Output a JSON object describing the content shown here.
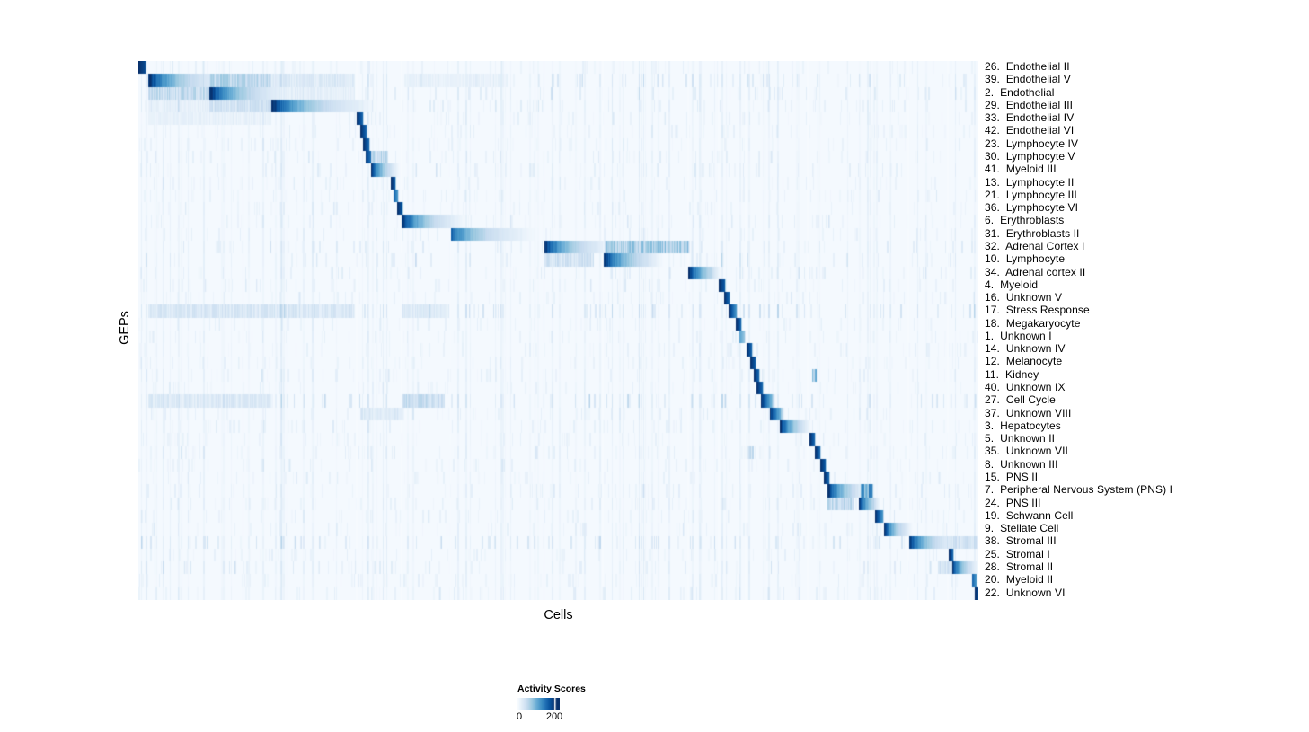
{
  "figure": {
    "background": "#ffffff",
    "plot_background": "#f5f9fe"
  },
  "chart_data": {
    "type": "heatmap",
    "title": "",
    "xlabel": "Cells",
    "ylabel": "GEPs",
    "grid": false,
    "colormap": "Blues",
    "color_min": "#f7fbff",
    "color_max": "#08306b",
    "value_range": [
      0,
      200
    ],
    "colorbar": {
      "title": "Activity Scores",
      "tick_labels": [
        "0",
        "200"
      ],
      "tick_values": [
        0,
        200
      ],
      "position": "bottom"
    },
    "n_rows": 42,
    "block_scale": 935,
    "rows": [
      {
        "label": "26.  Endothelial II",
        "block": [
          0,
          7
        ],
        "peak": 1.0,
        "end": 0.9,
        "noise": 0.8
      },
      {
        "label": "39.  Endothelial V",
        "block": [
          11,
          78
        ],
        "peak": 1.0,
        "end": 0.14,
        "noise": 1.6,
        "extras": [
          [
            79,
            147,
            0.3
          ],
          [
            148,
            240,
            0.14
          ],
          [
            296,
            410,
            0.08
          ]
        ]
      },
      {
        "label": "2.  Endothelial",
        "block": [
          79,
          147
        ],
        "peak": 1.0,
        "end": 0.14,
        "noise": 1.3,
        "extras": [
          [
            11,
            78,
            0.26
          ],
          [
            148,
            240,
            0.1
          ]
        ]
      },
      {
        "label": "29.  Endothelial III",
        "block": [
          148,
          242
        ],
        "peak": 1.0,
        "end": 0.11,
        "noise": 1.2,
        "extras": [
          [
            11,
            78,
            0.09
          ],
          [
            79,
            147,
            0.2
          ]
        ]
      },
      {
        "label": "33.  Endothelial IV",
        "block": [
          243,
          249
        ],
        "peak": 1.0,
        "end": 0.8,
        "noise": 0.9,
        "extras": [
          [
            11,
            147,
            0.08
          ]
        ]
      },
      {
        "label": "42.  Endothelial VI",
        "block": [
          247,
          253
        ],
        "peak": 1.0,
        "end": 0.8,
        "noise": 0.8
      },
      {
        "label": "23.  Lymphocyte IV",
        "block": [
          250,
          256
        ],
        "peak": 1.0,
        "end": 0.8,
        "noise": 0.8
      },
      {
        "label": "30.  Lymphocyte V",
        "block": [
          253,
          258
        ],
        "peak": 0.95,
        "end": 0.75,
        "noise": 1.0,
        "extras": [
          [
            259,
            277,
            0.28
          ]
        ]
      },
      {
        "label": "41.  Myeloid III",
        "block": [
          259,
          281
        ],
        "peak": 1.0,
        "end": 0.2,
        "noise": 1.0
      },
      {
        "label": "13.  Lymphocyte II",
        "block": [
          281,
          285
        ],
        "peak": 1.0,
        "end": 0.85,
        "noise": 0.8
      },
      {
        "label": "21.  Lymphocyte III",
        "block": [
          284,
          288
        ],
        "peak": 0.8,
        "end": 0.6,
        "noise": 0.8
      },
      {
        "label": "36.  Lymphocyte VI",
        "block": [
          288,
          293
        ],
        "peak": 1.0,
        "end": 0.85,
        "noise": 0.8
      },
      {
        "label": "6.  Erythroblasts",
        "block": [
          293,
          345
        ],
        "peak": 1.0,
        "end": 0.14,
        "noise": 0.9
      },
      {
        "label": "31.  Erythroblasts II",
        "block": [
          348,
          420
        ],
        "peak": 0.8,
        "end": 0.1,
        "noise": 0.9
      },
      {
        "label": "32.  Adrenal Cortex I",
        "block": [
          452,
          506
        ],
        "peak": 1.0,
        "end": 0.16,
        "noise": 1.3,
        "extras": [
          [
            519,
            612,
            0.36
          ]
        ]
      },
      {
        "label": "10.  Lymphocyte",
        "block": [
          518,
          564
        ],
        "peak": 1.0,
        "end": 0.2,
        "noise": 1.2,
        "extras": [
          [
            452,
            506,
            0.2
          ]
        ]
      },
      {
        "label": "34.  Adrenal cortex II",
        "block": [
          612,
          637
        ],
        "peak": 1.0,
        "end": 0.28,
        "noise": 1.1
      },
      {
        "label": "4.  Myeloid",
        "block": [
          646,
          652
        ],
        "peak": 1.0,
        "end": 0.85,
        "noise": 0.9
      },
      {
        "label": "16.  Unknown V",
        "block": [
          652,
          657
        ],
        "peak": 1.0,
        "end": 0.8,
        "noise": 0.8
      },
      {
        "label": "17.  Stress Response",
        "block": [
          657,
          665
        ],
        "peak": 1.0,
        "end": 0.6,
        "noise": 2.2,
        "extras": [
          [
            11,
            240,
            0.16
          ],
          [
            293,
            345,
            0.13
          ]
        ]
      },
      {
        "label": "18.  Megakaryocyte",
        "block": [
          665,
          670
        ],
        "peak": 1.0,
        "end": 0.8,
        "noise": 0.8
      },
      {
        "label": "1.  Unknown I",
        "block": [
          669,
          674
        ],
        "peak": 0.55,
        "end": 0.4,
        "noise": 0.8
      },
      {
        "label": "14.  Unknown IV",
        "block": [
          677,
          682
        ],
        "peak": 1.0,
        "end": 0.8,
        "noise": 0.8
      },
      {
        "label": "12.  Melanocyte",
        "block": [
          681,
          686
        ],
        "peak": 1.0,
        "end": 0.85,
        "noise": 0.8
      },
      {
        "label": "11.  Kidney",
        "block": [
          685,
          690
        ],
        "peak": 1.0,
        "end": 0.8,
        "noise": 0.9,
        "extras": [
          [
            750,
            754,
            0.45
          ]
        ]
      },
      {
        "label": "40.  Unknown IX",
        "block": [
          688,
          694
        ],
        "peak": 1.0,
        "end": 0.8,
        "noise": 0.8
      },
      {
        "label": "27.  Cell Cycle",
        "block": [
          693,
          704
        ],
        "peak": 1.0,
        "end": 0.5,
        "noise": 1.8,
        "extras": [
          [
            11,
            147,
            0.14
          ],
          [
            293,
            340,
            0.24
          ]
        ]
      },
      {
        "label": "37.  Unknown VIII",
        "block": [
          703,
          714
        ],
        "peak": 1.0,
        "end": 0.5,
        "noise": 1.0,
        "extras": [
          [
            247,
            294,
            0.14
          ]
        ]
      },
      {
        "label": "3.  Hepatocytes",
        "block": [
          714,
          738
        ],
        "peak": 1.0,
        "end": 0.22,
        "noise": 0.9
      },
      {
        "label": "5.  Unknown II",
        "block": [
          747,
          752
        ],
        "peak": 1.0,
        "end": 0.8,
        "noise": 0.8
      },
      {
        "label": "35.  Unknown VII",
        "block": [
          753,
          758
        ],
        "peak": 1.0,
        "end": 0.8,
        "noise": 1.0,
        "extras": [
          [
            678,
            684,
            0.22
          ]
        ]
      },
      {
        "label": "8.  Unknown III",
        "block": [
          759,
          764
        ],
        "peak": 1.0,
        "end": 0.85,
        "noise": 0.8
      },
      {
        "label": "15.  PNS II",
        "block": [
          763,
          768
        ],
        "peak": 1.0,
        "end": 0.8,
        "noise": 0.8
      },
      {
        "label": "7.  Peripheral Nervous System (PNS) I",
        "block": [
          767,
          797
        ],
        "peak": 1.0,
        "end": 0.22,
        "noise": 1.0,
        "extras": [
          [
            804,
            817,
            0.6
          ]
        ]
      },
      {
        "label": "24.  PNS III",
        "block": [
          802,
          818
        ],
        "peak": 1.0,
        "end": 0.28,
        "noise": 1.0,
        "extras": [
          [
            767,
            796,
            0.26
          ]
        ]
      },
      {
        "label": "19.  Schwann Cell",
        "block": [
          820,
          828
        ],
        "peak": 1.0,
        "end": 0.6,
        "noise": 0.8
      },
      {
        "label": "9.  Stellate Cell",
        "block": [
          830,
          852
        ],
        "peak": 1.0,
        "end": 0.18,
        "noise": 0.9
      },
      {
        "label": "38.  Stromal III",
        "block": [
          858,
          899
        ],
        "peak": 1.0,
        "end": 0.14,
        "noise": 1.8,
        "extras": [
          [
            900,
            935,
            0.2
          ]
        ]
      },
      {
        "label": "25.  Stromal I",
        "block": [
          902,
          906
        ],
        "peak": 1.0,
        "end": 0.8,
        "noise": 0.9
      },
      {
        "label": "28.  Stromal II",
        "block": [
          906,
          927
        ],
        "peak": 1.0,
        "end": 0.18,
        "noise": 1.2,
        "extras": [
          [
            890,
            906,
            0.18
          ]
        ]
      },
      {
        "label": "20.  Myeloid II",
        "block": [
          928,
          932
        ],
        "peak": 0.8,
        "end": 0.6,
        "noise": 0.9
      },
      {
        "label": "22.  Unknown VI",
        "block": [
          931,
          935
        ],
        "peak": 1.0,
        "end": 0.9,
        "noise": 1.1
      }
    ]
  }
}
